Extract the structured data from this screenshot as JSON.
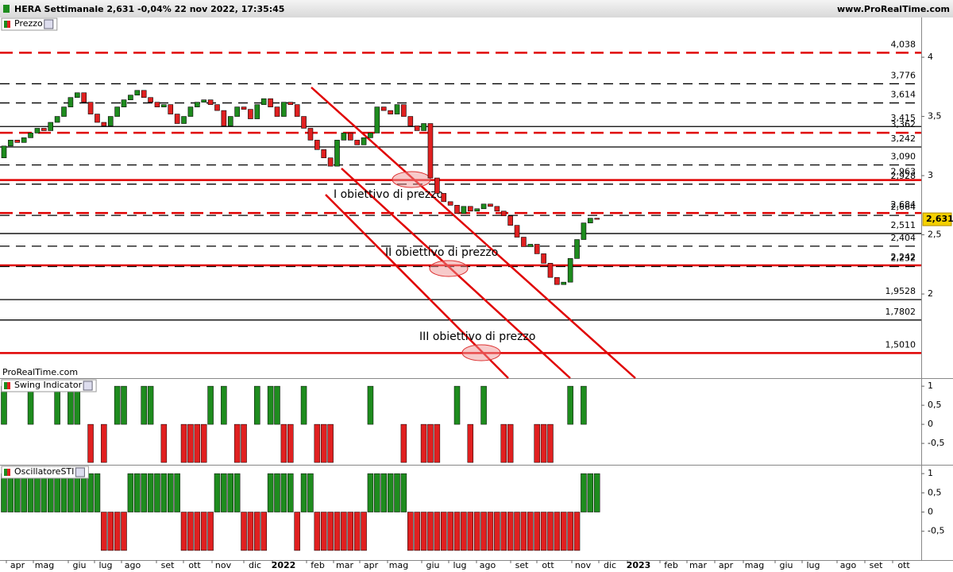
{
  "header": {
    "title": "HERA Settimanale 2,631 -0,04% 22 nov 2022, 17:35:45",
    "site": "www.ProRealTime.com",
    "watermark": "ProRealTime.com"
  },
  "x_labels": [
    "apr",
    "mag",
    "giu",
    "lug",
    "ago",
    "set",
    "ott",
    "nov",
    "dic",
    "2022",
    "feb",
    "mar",
    "apr",
    "mag",
    "giu",
    "lug",
    "ago",
    "set",
    "ott",
    "nov",
    "dic",
    "2023",
    "feb",
    "mar",
    "apr",
    "mag",
    "giu",
    "lug",
    "ago",
    "set",
    "ott"
  ],
  "chart_data": [
    {
      "type": "candlestick",
      "title": "Prezzo",
      "up_color": "#1e8c1e",
      "down_color": "#e02020",
      "ylim": [
        1.289,
        4.336
      ],
      "yticks": [
        4,
        {
          "value": 3.5,
          "label": "3,5"
        },
        3,
        {
          "value": 2.5,
          "label": "2,5"
        },
        2
      ],
      "open": [
        3.15,
        3.25,
        3.3,
        3.28,
        3.32,
        3.36,
        3.4,
        3.38,
        3.45,
        3.5,
        3.58,
        3.66,
        3.7,
        3.62,
        3.52,
        3.45,
        3.42,
        3.5,
        3.58,
        3.64,
        3.68,
        3.72,
        3.66,
        3.62,
        3.58,
        3.6,
        3.52,
        3.44,
        3.5,
        3.58,
        3.62,
        3.64,
        3.6,
        3.55,
        3.42,
        3.5,
        3.58,
        3.56,
        3.48,
        3.6,
        3.65,
        3.58,
        3.5,
        3.62,
        3.6,
        3.5,
        3.4,
        3.3,
        3.22,
        3.15,
        3.08,
        3.3,
        3.36,
        3.3,
        3.26,
        3.32,
        3.36,
        3.58,
        3.55,
        3.52,
        3.6,
        3.5,
        3.42,
        3.38,
        3.44,
        2.98,
        2.85,
        2.78,
        2.75,
        2.68,
        2.74,
        2.7,
        2.72,
        2.76,
        2.74,
        2.7,
        2.66,
        2.58,
        2.48,
        2.4,
        2.42,
        2.34,
        2.26,
        2.14,
        2.08,
        2.1,
        2.3,
        2.46,
        2.6,
        2.64
      ],
      "close": [
        3.25,
        3.3,
        3.28,
        3.32,
        3.36,
        3.4,
        3.38,
        3.45,
        3.5,
        3.58,
        3.66,
        3.7,
        3.62,
        3.52,
        3.45,
        3.42,
        3.5,
        3.58,
        3.64,
        3.68,
        3.72,
        3.66,
        3.62,
        3.58,
        3.6,
        3.52,
        3.44,
        3.5,
        3.58,
        3.62,
        3.64,
        3.6,
        3.55,
        3.42,
        3.5,
        3.58,
        3.56,
        3.48,
        3.6,
        3.65,
        3.58,
        3.5,
        3.62,
        3.6,
        3.5,
        3.4,
        3.3,
        3.22,
        3.15,
        3.08,
        3.3,
        3.36,
        3.3,
        3.26,
        3.32,
        3.36,
        3.58,
        3.55,
        3.52,
        3.6,
        3.5,
        3.42,
        3.38,
        3.44,
        2.98,
        2.85,
        2.78,
        2.75,
        2.68,
        2.74,
        2.7,
        2.72,
        2.76,
        2.74,
        2.7,
        2.66,
        2.58,
        2.48,
        2.4,
        2.42,
        2.34,
        2.26,
        2.14,
        2.08,
        2.1,
        2.3,
        2.46,
        2.6,
        2.64,
        2.631
      ],
      "last": {
        "value": 2.631,
        "label": "2,631"
      },
      "levels": [
        {
          "value": 4.038,
          "label": "4,038",
          "color": "#e00000",
          "style": "dashed"
        },
        {
          "value": 3.776,
          "label": "3,776",
          "color": "#000000",
          "style": "dashed"
        },
        {
          "value": 3.614,
          "label": "3,614",
          "color": "#000000",
          "style": "dashed"
        },
        {
          "value": 3.415,
          "label": "3,415",
          "color": "#000000",
          "style": "solid"
        },
        {
          "value": 3.362,
          "label": "3,362",
          "color": "#e00000",
          "style": "dashed"
        },
        {
          "value": 3.242,
          "label": "3,242",
          "color": "#000000",
          "style": "solid"
        },
        {
          "value": 3.09,
          "label": "3,090",
          "color": "#000000",
          "style": "dashed"
        },
        {
          "value": 2.963,
          "label": "2,963",
          "color": "#e00000",
          "style": "solid"
        },
        {
          "value": 2.928,
          "label": "2,928",
          "color": "#000000",
          "style": "dashed"
        },
        {
          "value": 2.684,
          "label": "2,684",
          "color": "#e00000",
          "style": "dashed"
        },
        {
          "value": 2.664,
          "label": "2,664",
          "color": "#000000",
          "style": "dashed"
        },
        {
          "value": 2.511,
          "label": "2,511",
          "color": "#000000",
          "style": "solid"
        },
        {
          "value": 2.404,
          "label": "2,404",
          "color": "#000000",
          "style": "dashed"
        },
        {
          "value": 2.242,
          "label": "2,242",
          "color": "#e00000",
          "style": "solid"
        },
        {
          "value": 2.232,
          "label": "2,232",
          "color": "#000000",
          "style": "dashed"
        },
        {
          "value": 1.9528,
          "label": "1,9528",
          "color": "#000000",
          "style": "solid"
        },
        {
          "value": 1.7802,
          "label": "1,7802",
          "color": "#000000",
          "style": "solid"
        },
        {
          "value": 1.501,
          "label": "1,5010",
          "color": "#e00000",
          "style": "solid"
        }
      ],
      "annotations": [
        "I obiettivo di prezzo",
        "II obiettivo di prezzo",
        "III obiettivo di prezzo"
      ]
    },
    {
      "type": "bar",
      "title": "Swing Indicator",
      "up_color": "#1e8c1e",
      "down_color": "#e02020",
      "ylim": [
        -1.06,
        1.19
      ],
      "yticks": [
        1,
        {
          "value": 0.5,
          "label": "0,5"
        },
        0,
        {
          "value": -0.5,
          "label": "-0,5"
        }
      ],
      "values": [
        1,
        0,
        0,
        0,
        1,
        0,
        0,
        0,
        1,
        0,
        1,
        1,
        0,
        -1,
        0,
        -1,
        0,
        1,
        1,
        0,
        0,
        1,
        1,
        0,
        -1,
        0,
        0,
        -1,
        -1,
        -1,
        -1,
        1,
        0,
        1,
        0,
        -1,
        -1,
        0,
        1,
        0,
        1,
        1,
        -1,
        -1,
        0,
        1,
        0,
        -1,
        -1,
        -1,
        0,
        0,
        0,
        0,
        0,
        1,
        0,
        0,
        0,
        0,
        -1,
        0,
        0,
        -1,
        -1,
        -1,
        0,
        0,
        1,
        0,
        -1,
        0,
        1,
        0,
        0,
        -1,
        -1,
        0,
        0,
        0,
        -1,
        -1,
        -1,
        0,
        0,
        1,
        0,
        1,
        0,
        0
      ]
    },
    {
      "type": "bar",
      "title": "OscillatoreSTI",
      "up_color": "#1e8c1e",
      "down_color": "#e02020",
      "ylim": [
        -1.25,
        1.21
      ],
      "yticks": [
        1,
        {
          "value": 0.5,
          "label": "0,5"
        },
        0,
        {
          "value": -0.5,
          "label": "-0,5"
        }
      ],
      "values": [
        1,
        1,
        1,
        1,
        1,
        1,
        1,
        1,
        1,
        1,
        1,
        1,
        1,
        1,
        1,
        -1,
        -1,
        -1,
        -1,
        1,
        1,
        1,
        1,
        1,
        1,
        1,
        1,
        -1,
        -1,
        -1,
        -1,
        -1,
        1,
        1,
        1,
        1,
        -1,
        -1,
        -1,
        -1,
        1,
        1,
        1,
        1,
        -1,
        1,
        1,
        -1,
        -1,
        -1,
        -1,
        -1,
        -1,
        -1,
        -1,
        1,
        1,
        1,
        1,
        1,
        1,
        -1,
        -1,
        -1,
        -1,
        -1,
        -1,
        -1,
        -1,
        -1,
        -1,
        -1,
        -1,
        -1,
        -1,
        -1,
        -1,
        -1,
        -1,
        -1,
        -1,
        -1,
        -1,
        -1,
        -1,
        -1,
        -1,
        1,
        1,
        1
      ]
    }
  ]
}
